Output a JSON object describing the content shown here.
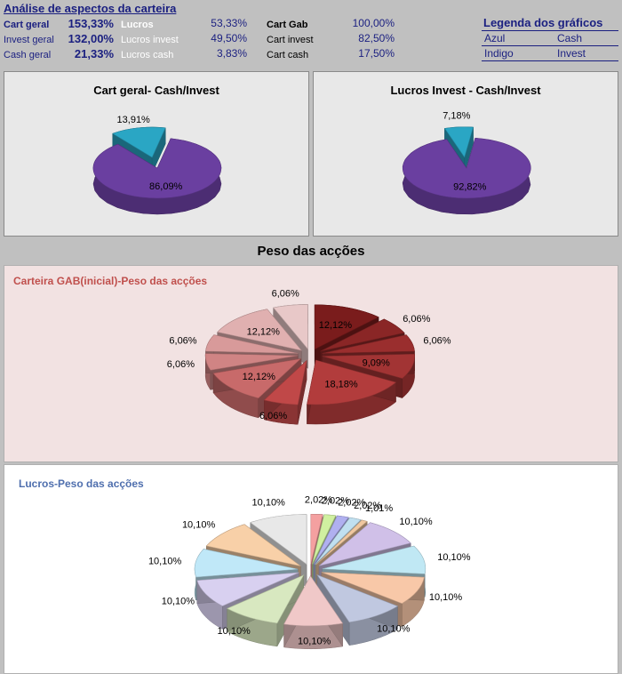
{
  "header": {
    "title": "Análise de aspectos da carteira",
    "col1": [
      {
        "label": "Cart geral",
        "value": "153,33%"
      },
      {
        "label": "Invest geral",
        "value": "132,00%"
      },
      {
        "label": "Cash geral",
        "value": "21,33%"
      }
    ],
    "col2": [
      {
        "label": "Lucros",
        "value": "53,33%"
      },
      {
        "label": "Lucros invest",
        "value": "49,50%"
      },
      {
        "label": "Lucros cash",
        "value": "3,83%"
      }
    ],
    "col3": [
      {
        "label": "Cart Gab",
        "value": "100,00%"
      },
      {
        "label": "Cart invest",
        "value": "82,50%"
      },
      {
        "label": "Cart cash",
        "value": "17,50%"
      }
    ],
    "legend": {
      "title": "Legenda dos gráficos",
      "rows": [
        {
          "color_name": "Azul",
          "meaning": "Cash"
        },
        {
          "color_name": "Indigo",
          "meaning": "Invest"
        }
      ]
    }
  },
  "section_title": "Peso das acções",
  "chart_data": [
    {
      "type": "pie",
      "title": "Cart geral- Cash/Invest",
      "labels": [
        "13,91%",
        "86,09%"
      ],
      "values": [
        13.91,
        86.09
      ],
      "colors": [
        "#2aa6c4",
        "#6a3fa0"
      ],
      "exploded": [
        0
      ]
    },
    {
      "type": "pie",
      "title": "Lucros Invest - Cash/Invest",
      "labels": [
        "7,18%",
        "92,82%"
      ],
      "values": [
        7.18,
        92.82
      ],
      "colors": [
        "#2aa6c4",
        "#6a3fa0"
      ],
      "exploded": [
        0
      ]
    },
    {
      "type": "pie",
      "title": "Carteira GAB(inicial)-Peso das acções",
      "labels": [
        "12,12%",
        "6,06%",
        "6,06%",
        "9,09%",
        "18,18%",
        "6,06%",
        "12,12%",
        "6,06%",
        "6,06%",
        "12,12%",
        "6,06%"
      ],
      "values": [
        12.12,
        6.06,
        6.06,
        9.09,
        18.18,
        6.06,
        12.12,
        6.06,
        6.06,
        12.12,
        6.06
      ],
      "colors": [
        "#7a1c1c",
        "#8a2626",
        "#9a2e2e",
        "#a23434",
        "#b23c3c",
        "#c04848",
        "#c86a6a",
        "#d08484",
        "#d89a9a",
        "#e0b0b0",
        "#e8c8c8"
      ]
    },
    {
      "type": "pie",
      "title": "Lucros-Peso das acções",
      "labels": [
        "2,02%",
        "2,02%",
        "2,02%",
        "2,02%",
        "1,01%",
        "10,10%",
        "10,10%",
        "10,10%",
        "10,10%",
        "10,10%",
        "10,10%",
        "10,10%",
        "10,10%",
        "10,10%",
        "10,10%"
      ],
      "values": [
        2.02,
        2.02,
        2.02,
        2.02,
        1.01,
        10.1,
        10.1,
        10.1,
        10.1,
        10.1,
        10.1,
        10.1,
        10.1,
        10.1,
        10.1
      ],
      "colors": [
        "#f4a0a0",
        "#d0f0a0",
        "#b0b0f0",
        "#c0e0f0",
        "#f0c8a0",
        "#d0c0e8",
        "#c0e8f4",
        "#f8c8a8",
        "#c0c8e0",
        "#f0c8c8",
        "#d8e8c0",
        "#d8d0f0",
        "#c0e8f8",
        "#f8d0a8",
        "#e8e8e8"
      ]
    }
  ]
}
